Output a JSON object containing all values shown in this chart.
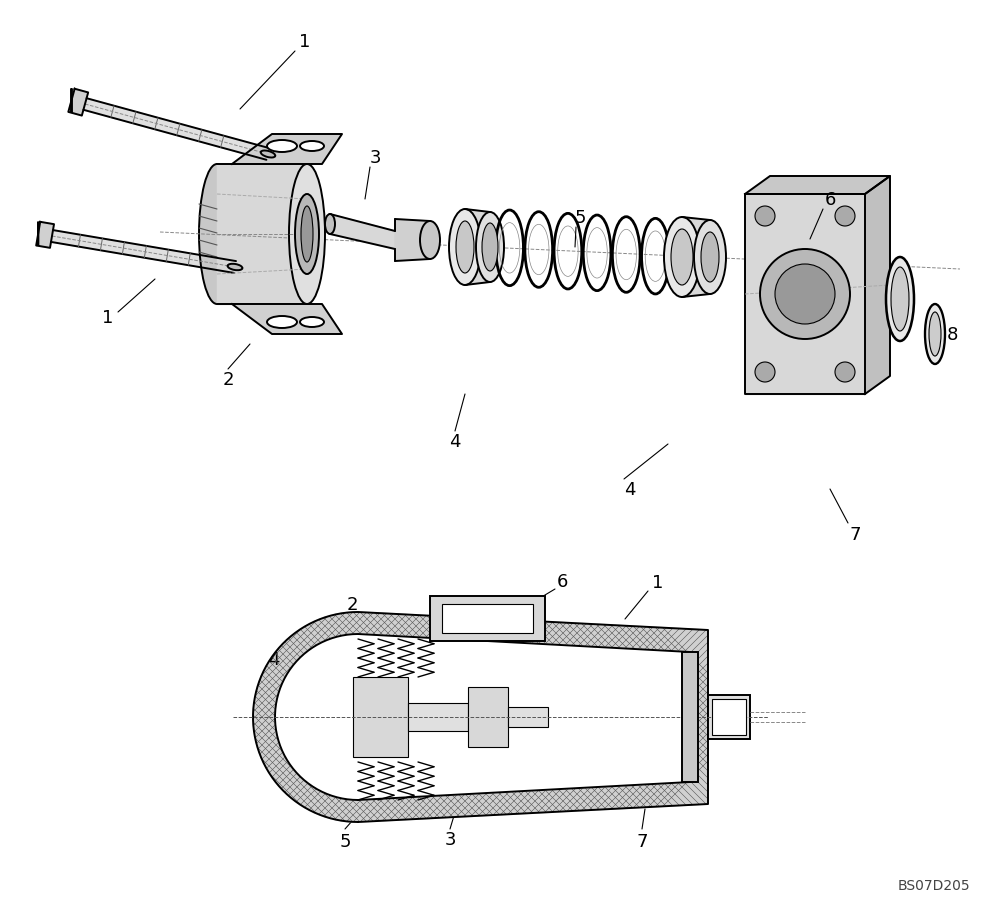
{
  "background_color": "#ffffff",
  "line_color": "#000000",
  "watermark": "BS07D205",
  "lw_main": 1.4,
  "lw_thin": 0.8,
  "lw_dash": 0.7,
  "label_fs": 13
}
